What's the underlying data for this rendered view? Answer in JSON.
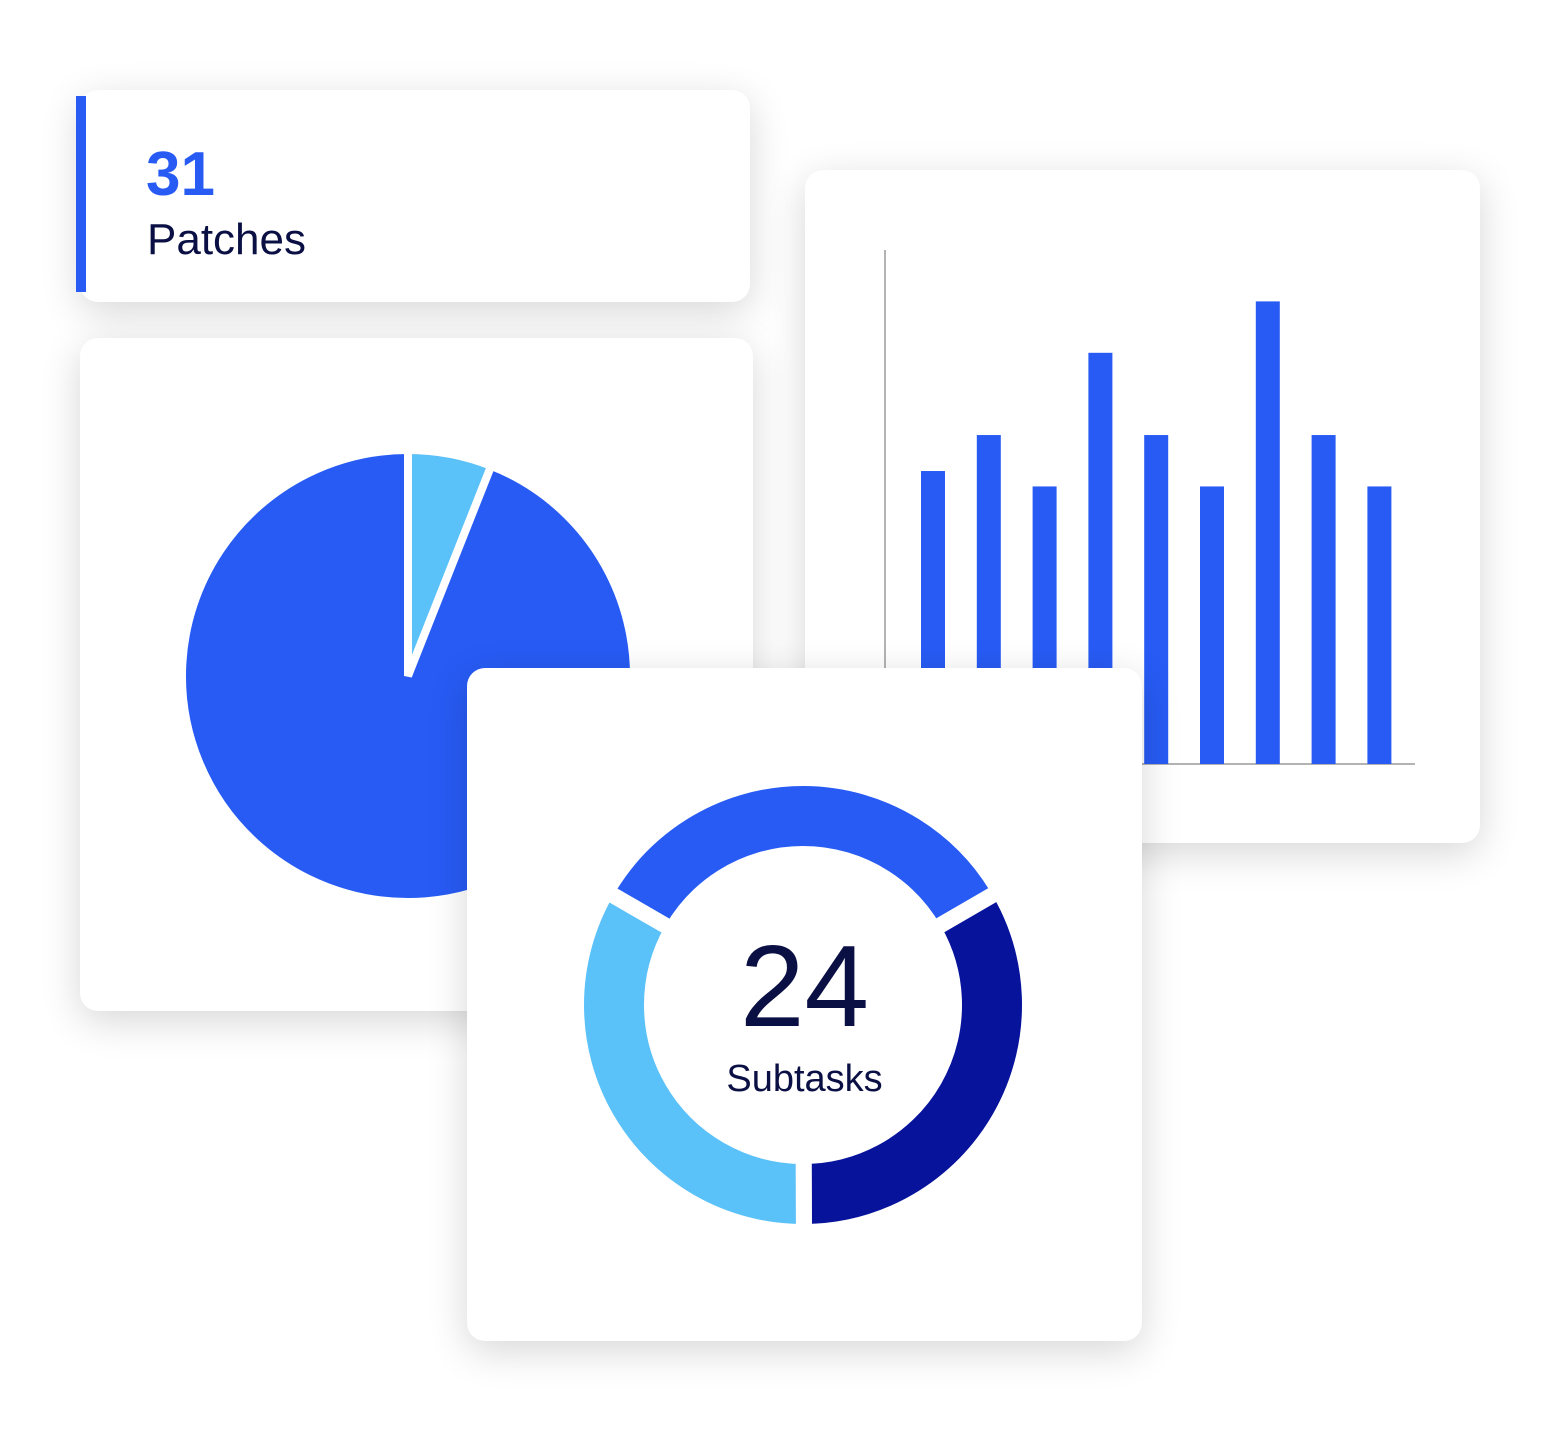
{
  "colors": {
    "primary": "#275bf4",
    "light": "#5bc1f9",
    "dark": "#07139b",
    "text": "#0b1044",
    "axis": "#9a9a9a"
  },
  "stat": {
    "value": "31",
    "label": "Patches"
  },
  "donut": {
    "value": "24",
    "label": "Subtasks"
  },
  "chart_data": [
    {
      "type": "pie",
      "series": [
        {
          "value": 94,
          "color": "#275bf4"
        },
        {
          "value": 6,
          "color": "#5bc1f9"
        }
      ]
    },
    {
      "type": "bar",
      "values": [
        57,
        64,
        54,
        80,
        64,
        54,
        90,
        64,
        54
      ],
      "ylim": [
        0,
        100
      ],
      "grid": false,
      "color": "#275bf4"
    },
    {
      "type": "pie",
      "subtype": "donut",
      "series": [
        {
          "value": 33.3,
          "color": "#275bf4"
        },
        {
          "value": 33.3,
          "color": "#07139b"
        },
        {
          "value": 33.4,
          "color": "#5bc1f9"
        }
      ]
    }
  ]
}
